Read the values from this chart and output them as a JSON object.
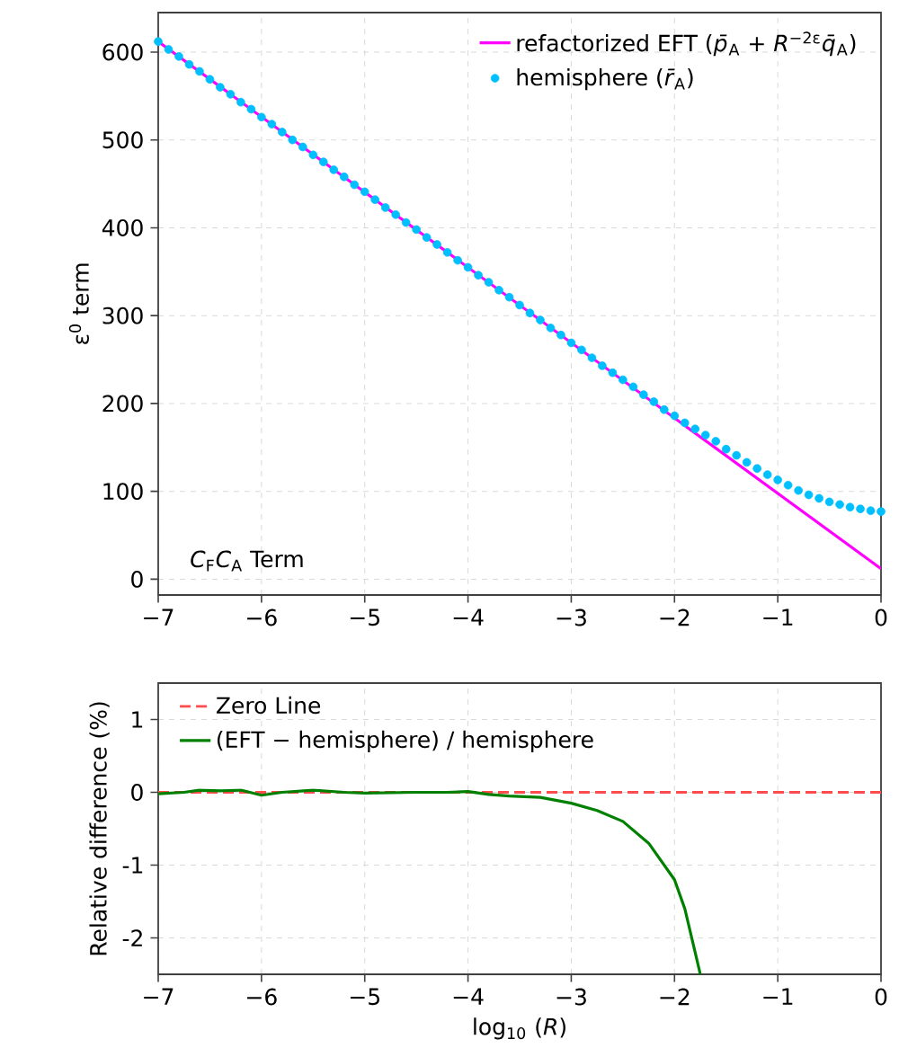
{
  "chart_data": [
    {
      "type": "line",
      "ylabel": "ε$^{0}$ term",
      "annotations": [
        "*C*$_{F}$*C*$_{A}$ Term"
      ],
      "xlim": [
        -7,
        0
      ],
      "xticks": [
        {
          "value": -7,
          "label": "−7"
        },
        {
          "value": -6,
          "label": "−6"
        },
        {
          "value": -5,
          "label": "−5"
        },
        {
          "value": -4,
          "label": "−4"
        },
        {
          "value": -3,
          "label": "−3"
        },
        {
          "value": -2,
          "label": "−2"
        },
        {
          "value": -1,
          "label": "−1"
        },
        {
          "value": 0,
          "label": "0"
        }
      ],
      "ylim": [
        -18,
        645
      ],
      "yticks": [
        0,
        100,
        200,
        300,
        400,
        500,
        600
      ],
      "grid": true,
      "legend": "top right",
      "series": [
        {
          "name": "refactorized EFT (*p̄*$_{A}$ + *R*$^{−2ε}$*q̄*$_{A}$)",
          "color": "#ff00ff",
          "line_style": "solid",
          "x": [
            -7,
            0
          ],
          "values": [
            612,
            12
          ]
        },
        {
          "name": "hemisphere (*r̄*$_{A}$)",
          "type": "scatter",
          "marker": "circle",
          "color": "#00bfff",
          "x": [
            -7.0,
            -6.9,
            -6.8,
            -6.7,
            -6.6,
            -6.5,
            -6.4,
            -6.3,
            -6.2,
            -6.1,
            -6.0,
            -5.9,
            -5.8,
            -5.7,
            -5.6,
            -5.5,
            -5.4,
            -5.3,
            -5.2,
            -5.1,
            -5.0,
            -4.9,
            -4.8,
            -4.7,
            -4.6,
            -4.5,
            -4.4,
            -4.3,
            -4.2,
            -4.1,
            -4.0,
            -3.9,
            -3.8,
            -3.7,
            -3.6,
            -3.5,
            -3.4,
            -3.3,
            -3.2,
            -3.1,
            -3.0,
            -2.9,
            -2.8,
            -2.7,
            -2.6,
            -2.5,
            -2.4,
            -2.3,
            -2.2,
            -2.1,
            -2.0,
            -1.9,
            -1.8,
            -1.7,
            -1.6,
            -1.5,
            -1.4,
            -1.3,
            -1.2,
            -1.1,
            -1.0,
            -0.9,
            -0.8,
            -0.7,
            -0.6,
            -0.5,
            -0.4,
            -0.3,
            -0.2,
            -0.1,
            0.0
          ],
          "values": [
            612,
            603,
            595,
            586,
            578,
            569,
            560,
            552,
            543,
            535,
            526,
            518,
            509,
            500,
            492,
            483,
            475,
            466,
            458,
            449,
            441,
            432,
            423,
            415,
            406,
            398,
            389,
            381,
            372,
            363,
            355,
            346,
            338,
            329,
            321,
            312,
            303,
            295,
            286,
            278,
            269,
            261,
            252,
            243,
            235,
            227,
            219,
            210,
            202,
            193,
            186,
            178,
            171,
            164,
            157,
            148,
            141,
            133,
            126,
            119,
            113,
            107,
            101,
            96,
            92,
            88,
            85,
            82,
            80,
            78,
            77
          ]
        }
      ]
    },
    {
      "type": "line",
      "xlabel": "log$_{10}$ (*R*)",
      "ylabel": "Relative difference (%)",
      "xlim": [
        -7,
        0
      ],
      "xticks": [
        {
          "value": -7,
          "label": "−7"
        },
        {
          "value": -6,
          "label": "−6"
        },
        {
          "value": -5,
          "label": "−5"
        },
        {
          "value": -4,
          "label": "−4"
        },
        {
          "value": -3,
          "label": "−3"
        },
        {
          "value": -2,
          "label": "−2"
        },
        {
          "value": -1,
          "label": "−1"
        },
        {
          "value": 0,
          "label": "0"
        }
      ],
      "ylim": [
        -2.5,
        1.5
      ],
      "yticks": [
        -2,
        -1,
        0,
        1
      ],
      "grid": true,
      "legend": "top left",
      "ref_lines": [
        {
          "axis": "y",
          "value": 0,
          "label": "Zero Line",
          "color": "#ff4d4d",
          "line_style": "dashed"
        }
      ],
      "series": [
        {
          "name": "(EFT − hemisphere) / hemisphere",
          "color": "#008000",
          "line_style": "solid",
          "x": [
            -7,
            -6.75,
            -6.6,
            -6.4,
            -6.2,
            -6.0,
            -5.8,
            -5.5,
            -5.2,
            -5.0,
            -4.5,
            -4.2,
            -4.0,
            -3.8,
            -3.6,
            -3.3,
            -3.0,
            -2.75,
            -2.5,
            -2.25,
            -2.0,
            -1.9,
            -1.8,
            -1.75
          ],
          "values": [
            -0.02,
            0.0,
            0.03,
            0.02,
            0.03,
            -0.04,
            0.0,
            0.03,
            0.0,
            -0.01,
            0.0,
            0.0,
            0.01,
            -0.03,
            -0.05,
            -0.07,
            -0.15,
            -0.25,
            -0.4,
            -0.7,
            -1.2,
            -1.6,
            -2.2,
            -2.5
          ]
        }
      ]
    }
  ]
}
